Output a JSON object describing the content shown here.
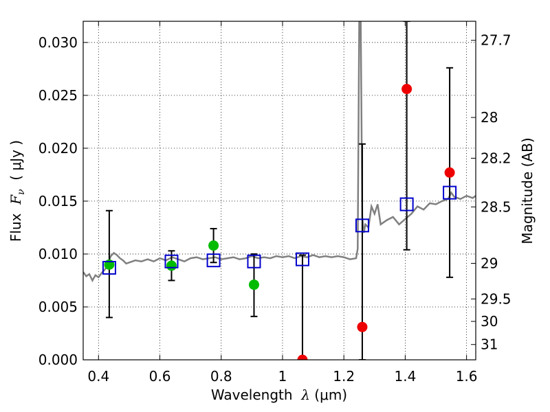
{
  "chart_data": {
    "type": "scatter",
    "xlabel": {
      "prefix": "Wavelength  ",
      "symbol": "λ",
      "unit": " (μm)"
    },
    "ylabel": {
      "prefix": "Flux  ",
      "symbol": "F",
      "subscript": "ν",
      "unit": "  ( μJy )"
    },
    "y2label": "Magnitude (AB)",
    "xlim": [
      0.35,
      1.63
    ],
    "ylim": [
      0.0,
      0.032
    ],
    "grid": true,
    "x_ticks": [
      {
        "value": 0.4,
        "label": "0.4"
      },
      {
        "value": 0.6,
        "label": "0.6"
      },
      {
        "value": 0.8,
        "label": "0.8"
      },
      {
        "value": 1.0,
        "label": "1"
      },
      {
        "value": 1.2,
        "label": "1.2"
      },
      {
        "value": 1.4,
        "label": "1.4"
      },
      {
        "value": 1.6,
        "label": "1.6"
      }
    ],
    "y_ticks": [
      {
        "value": 0.0,
        "label": "0.000"
      },
      {
        "value": 0.005,
        "label": "0.005"
      },
      {
        "value": 0.01,
        "label": "0.010"
      },
      {
        "value": 0.015,
        "label": "0.015"
      },
      {
        "value": 0.02,
        "label": "0.020"
      },
      {
        "value": 0.025,
        "label": "0.025"
      },
      {
        "value": 0.03,
        "label": "0.030"
      }
    ],
    "y2_ticks": [
      {
        "value": 27.7,
        "label": "27.7"
      },
      {
        "value": 28,
        "label": "28"
      },
      {
        "value": 28.2,
        "label": "28.2"
      },
      {
        "value": 28.5,
        "label": "28.5"
      },
      {
        "value": 29,
        "label": "29"
      },
      {
        "value": 29.5,
        "label": "29.5"
      },
      {
        "value": 30,
        "label": "30"
      },
      {
        "value": 31,
        "label": "31"
      }
    ],
    "colors": {
      "model": "#808080",
      "model_photometry": "#0000cc",
      "detected": "#00bb00",
      "non_detected": "#ee0000",
      "errorbar": "#000000",
      "grid": "#000000"
    },
    "model_spectrum": {
      "x": [
        0.35,
        0.36,
        0.37,
        0.38,
        0.39,
        0.4,
        0.41,
        0.42,
        0.43,
        0.44,
        0.45,
        0.46,
        0.47,
        0.48,
        0.49,
        0.5,
        0.52,
        0.54,
        0.56,
        0.58,
        0.6,
        0.62,
        0.64,
        0.66,
        0.68,
        0.7,
        0.72,
        0.74,
        0.76,
        0.78,
        0.8,
        0.82,
        0.84,
        0.86,
        0.88,
        0.9,
        0.92,
        0.94,
        0.96,
        0.98,
        1.0,
        1.02,
        1.04,
        1.06,
        1.08,
        1.1,
        1.12,
        1.14,
        1.16,
        1.18,
        1.2,
        1.22,
        1.24,
        1.245,
        1.25,
        1.255,
        1.26,
        1.265,
        1.27,
        1.28,
        1.29,
        1.3,
        1.31,
        1.32,
        1.34,
        1.36,
        1.38,
        1.4,
        1.42,
        1.44,
        1.46,
        1.48,
        1.5,
        1.52,
        1.54,
        1.55,
        1.56,
        1.58,
        1.6,
        1.62,
        1.63
      ],
      "y": [
        0.0083,
        0.0079,
        0.0081,
        0.0075,
        0.008,
        0.0078,
        0.0082,
        0.0085,
        0.009,
        0.0098,
        0.0101,
        0.0099,
        0.0096,
        0.0094,
        0.0091,
        0.0092,
        0.0094,
        0.0093,
        0.0095,
        0.0093,
        0.0096,
        0.0094,
        0.0097,
        0.0095,
        0.0093,
        0.0096,
        0.0097,
        0.0095,
        0.0096,
        0.0097,
        0.0095,
        0.0096,
        0.0097,
        0.0095,
        0.0096,
        0.0098,
        0.0096,
        0.0097,
        0.0096,
        0.0098,
        0.0097,
        0.0098,
        0.0096,
        0.0098,
        0.0097,
        0.0099,
        0.0097,
        0.0098,
        0.0097,
        0.0098,
        0.0097,
        0.0095,
        0.0096,
        0.0105,
        0.032,
        0.032,
        0.0135,
        0.012,
        0.0128,
        0.0125,
        0.0145,
        0.0138,
        0.0147,
        0.0128,
        0.0132,
        0.0135,
        0.0128,
        0.0133,
        0.0138,
        0.0145,
        0.0142,
        0.0148,
        0.0147,
        0.015,
        0.0152,
        0.0158,
        0.0154,
        0.0152,
        0.0155,
        0.0153,
        0.0155
      ]
    },
    "model_photometry": {
      "x": [
        0.435,
        0.638,
        0.775,
        0.907,
        1.065,
        1.26,
        1.405,
        1.545
      ],
      "y": [
        0.0087,
        0.0093,
        0.0094,
        0.0093,
        0.0095,
        0.0127,
        0.0147,
        0.0158
      ]
    },
    "observed": [
      {
        "x": 0.435,
        "y": 0.009,
        "err_low": 0.004,
        "err_high": 0.0141,
        "detected": true
      },
      {
        "x": 0.638,
        "y": 0.0089,
        "err_low": 0.0075,
        "err_high": 0.0103,
        "detected": true
      },
      {
        "x": 0.775,
        "y": 0.0108,
        "err_low": 0.0092,
        "err_high": 0.0124,
        "detected": true
      },
      {
        "x": 0.907,
        "y": 0.0071,
        "err_low": 0.0041,
        "err_high": 0.01,
        "detected": true
      },
      {
        "x": 1.065,
        "y": 0.0,
        "err_low": 0.0,
        "err_high": 0.0099,
        "detected": false
      },
      {
        "x": 1.26,
        "y": 0.0031,
        "err_low": 0.0,
        "err_high": 0.0204,
        "detected": false
      },
      {
        "x": 1.405,
        "y": 0.0256,
        "err_low": 0.0104,
        "err_high": 0.032,
        "detected": false
      },
      {
        "x": 1.545,
        "y": 0.0177,
        "err_low": 0.0078,
        "err_high": 0.0276,
        "detected": false
      }
    ]
  }
}
